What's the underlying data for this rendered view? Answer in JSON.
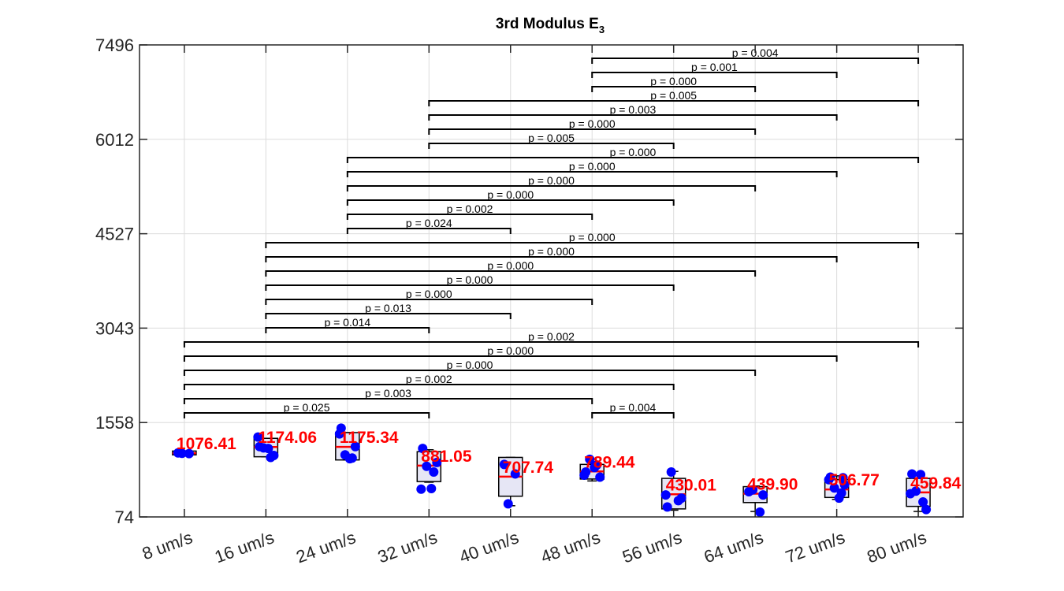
{
  "chart_data": {
    "type": "box",
    "title": "3rd Modulus E",
    "title_subscript": "3",
    "xlabel": "",
    "ylabel": "",
    "ylim": [
      74,
      7496
    ],
    "yticks": [
      "74",
      "1558",
      "3043",
      "4527",
      "6012",
      "7496"
    ],
    "grid": true,
    "categories": [
      "8 um/s",
      "16 um/s",
      "24 um/s",
      "32 um/s",
      "40 um/s",
      "48 um/s",
      "56 um/s",
      "64 um/s",
      "72 um/s",
      "80 um/s"
    ],
    "medians": [
      1076.41,
      1174.06,
      1175.34,
      881.05,
      707.74,
      789.44,
      430.01,
      439.9,
      506.77,
      459.84
    ],
    "median_labels": [
      "1076.41",
      "1174.06",
      "1175.34",
      "881.05",
      "707.74",
      "789.44",
      "430.01",
      "439.90",
      "506.77",
      "459.84"
    ],
    "boxes": [
      {
        "q1": 1050,
        "q3": 1110,
        "wlo": 1050,
        "whi": 1110
      },
      {
        "q1": 1020,
        "q3": 1310,
        "wlo": 1020,
        "whi": 1310
      },
      {
        "q1": 970,
        "q3": 1400,
        "wlo": 970,
        "whi": 1400
      },
      {
        "q1": 630,
        "q3": 1100,
        "wlo": 620,
        "whi": 1130
      },
      {
        "q1": 400,
        "q3": 1010,
        "wlo": 250,
        "whi": 1010
      },
      {
        "q1": 670,
        "q3": 900,
        "wlo": 640,
        "whi": 980
      },
      {
        "q1": 200,
        "q3": 680,
        "wlo": 180,
        "whi": 790
      },
      {
        "q1": 300,
        "q3": 550,
        "wlo": 160,
        "whi": 560
      },
      {
        "q1": 380,
        "q3": 660,
        "wlo": 350,
        "whi": 720
      },
      {
        "q1": 240,
        "q3": 680,
        "wlo": 160,
        "whi": 750
      }
    ],
    "points": [
      [
        1080,
        1070,
        1075
      ],
      [
        1180,
        1010,
        1160,
        1040,
        1330,
        1150
      ],
      [
        1470,
        1000,
        1050,
        1180,
        1380,
        990
      ],
      [
        1150,
        780,
        870,
        930,
        510,
        520
      ],
      [
        900,
        750,
        280
      ],
      [
        780,
        890,
        980,
        700,
        730,
        850
      ],
      [
        230,
        330,
        780,
        370,
        420
      ],
      [
        470,
        150,
        500,
        420
      ],
      [
        700,
        450,
        530,
        580,
        660,
        370,
        690
      ],
      [
        750,
        310,
        480,
        190,
        440,
        740
      ]
    ],
    "comparisons": [
      {
        "i": 0,
        "j": 3,
        "p": "p = 0.025",
        "level": 1
      },
      {
        "i": 5,
        "j": 6,
        "p": "p = 0.004",
        "level": 1
      },
      {
        "i": 0,
        "j": 5,
        "p": "p = 0.003",
        "level": 2
      },
      {
        "i": 0,
        "j": 6,
        "p": "p = 0.002",
        "level": 3
      },
      {
        "i": 0,
        "j": 7,
        "p": "p = 0.000",
        "level": 4
      },
      {
        "i": 0,
        "j": 8,
        "p": "p = 0.000",
        "level": 5
      },
      {
        "i": 0,
        "j": 9,
        "p": "p = 0.002",
        "level": 6
      },
      {
        "i": 1,
        "j": 3,
        "p": "p = 0.014",
        "level": 7
      },
      {
        "i": 1,
        "j": 4,
        "p": "p = 0.013",
        "level": 8
      },
      {
        "i": 1,
        "j": 5,
        "p": "p = 0.000",
        "level": 9
      },
      {
        "i": 1,
        "j": 6,
        "p": "p = 0.000",
        "level": 10
      },
      {
        "i": 1,
        "j": 7,
        "p": "p = 0.000",
        "level": 11
      },
      {
        "i": 1,
        "j": 8,
        "p": "p = 0.000",
        "level": 12
      },
      {
        "i": 1,
        "j": 9,
        "p": "p = 0.000",
        "level": 13
      },
      {
        "i": 2,
        "j": 4,
        "p": "p = 0.024",
        "level": 14
      },
      {
        "i": 2,
        "j": 5,
        "p": "p = 0.002",
        "level": 15
      },
      {
        "i": 2,
        "j": 6,
        "p": "p = 0.000",
        "level": 16
      },
      {
        "i": 2,
        "j": 7,
        "p": "p = 0.000",
        "level": 17
      },
      {
        "i": 2,
        "j": 8,
        "p": "p = 0.000",
        "level": 18
      },
      {
        "i": 2,
        "j": 9,
        "p": "p = 0.000",
        "level": 19
      },
      {
        "i": 3,
        "j": 6,
        "p": "p = 0.005",
        "level": 20
      },
      {
        "i": 3,
        "j": 7,
        "p": "p = 0.000",
        "level": 21
      },
      {
        "i": 3,
        "j": 8,
        "p": "p = 0.003",
        "level": 22
      },
      {
        "i": 3,
        "j": 9,
        "p": "p = 0.005",
        "level": 23
      },
      {
        "i": 5,
        "j": 7,
        "p": "p = 0.000",
        "level": 24
      },
      {
        "i": 5,
        "j": 8,
        "p": "p = 0.001",
        "level": 25
      },
      {
        "i": 5,
        "j": 9,
        "p": "p = 0.004",
        "level": 26
      }
    ],
    "colors": {
      "box_fill": "#e6e6f5",
      "median": "#ff0000",
      "points": "#0000ff",
      "median_label": "#ff0000",
      "bracket": "#000000",
      "grid": "#dcdcdc"
    }
  }
}
